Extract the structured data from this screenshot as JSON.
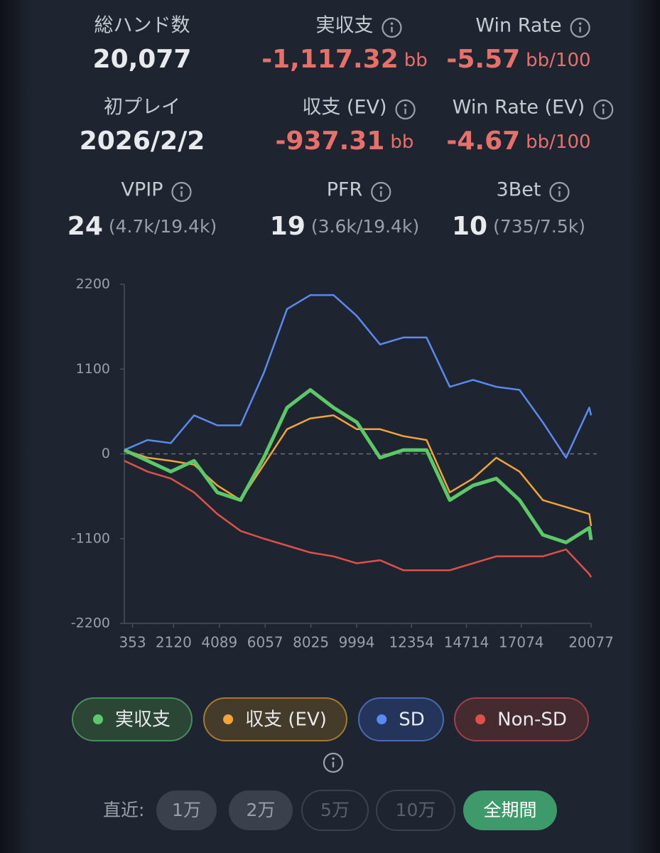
{
  "stats": [
    {
      "label": "総ハンド数",
      "value": "20,077"
    },
    {
      "label": "実収支",
      "value": "-1,117.32",
      "unit": "bb",
      "info": true,
      "color": "#e8706a"
    },
    {
      "label": "Win Rate",
      "value": "-5.57",
      "unit": "bb/100",
      "info": true,
      "color": "#e8706a"
    },
    {
      "label": "初プレイ",
      "value": "2026/2/2"
    },
    {
      "label": "収支 (EV)",
      "value": "-937.31",
      "unit": "bb",
      "info": true,
      "color": "#e8706a"
    },
    {
      "label": "Win Rate (EV)",
      "value": "-4.67",
      "unit": "bb/100",
      "info": true,
      "color": "#e8706a"
    },
    {
      "label": "VPIP",
      "value": "24",
      "detail": "(4.7k/19.4k)",
      "info": true
    },
    {
      "label": "PFR",
      "value": "19",
      "detail": "(3.6k/19.4k)",
      "info": true
    },
    {
      "label": "3Bet",
      "value": "10",
      "detail": "(735/7.5k)",
      "info": true
    }
  ],
  "chart_data": {
    "type": "line",
    "x": [
      0,
      1000,
      2000,
      3000,
      4000,
      5000,
      6000,
      7000,
      8000,
      9000,
      10000,
      11000,
      12000,
      13000,
      14000,
      15000,
      16000,
      17000,
      18000,
      19000,
      20000,
      20077
    ],
    "xlim": [
      0,
      20077
    ],
    "xticks": [
      353,
      2120,
      4089,
      6057,
      8025,
      9994,
      12354,
      14714,
      17074,
      20077
    ],
    "ylim": [
      -2200,
      2200
    ],
    "yticks": [
      -2200,
      -1100,
      0,
      1100,
      2200
    ],
    "zero_line": true,
    "series": [
      {
        "name": "実収支",
        "color": "#5cc868",
        "values": [
          50,
          -90,
          -230,
          -90,
          -500,
          -600,
          -50,
          600,
          830,
          600,
          410,
          -50,
          50,
          50,
          -600,
          -410,
          -320,
          -600,
          -1050,
          -1150,
          -960,
          -1117
        ]
      },
      {
        "name": "収支 (EV)",
        "color": "#f0a43a",
        "values": [
          50,
          -50,
          -90,
          -140,
          -410,
          -600,
          -140,
          320,
          460,
          500,
          320,
          320,
          230,
          180,
          -500,
          -320,
          -50,
          -230,
          -600,
          -690,
          -780,
          -937
        ]
      },
      {
        "name": "SD",
        "color": "#5a8af0",
        "values": [
          50,
          180,
          140,
          500,
          370,
          370,
          1050,
          1880,
          2060,
          2060,
          1790,
          1420,
          1510,
          1510,
          870,
          960,
          870,
          830,
          410,
          -50,
          600,
          500
        ]
      },
      {
        "name": "Non-SD",
        "color": "#e0504a",
        "values": [
          -90,
          -230,
          -320,
          -500,
          -780,
          -1000,
          -1100,
          -1190,
          -1280,
          -1330,
          -1420,
          -1380,
          -1510,
          -1510,
          -1510,
          -1420,
          -1330,
          -1330,
          -1330,
          -1240,
          -1560,
          -1600
        ]
      }
    ]
  },
  "filters": {
    "label": "直近:",
    "options": [
      "1万",
      "2万",
      "5万",
      "10万",
      "全期間"
    ],
    "active": 4
  }
}
